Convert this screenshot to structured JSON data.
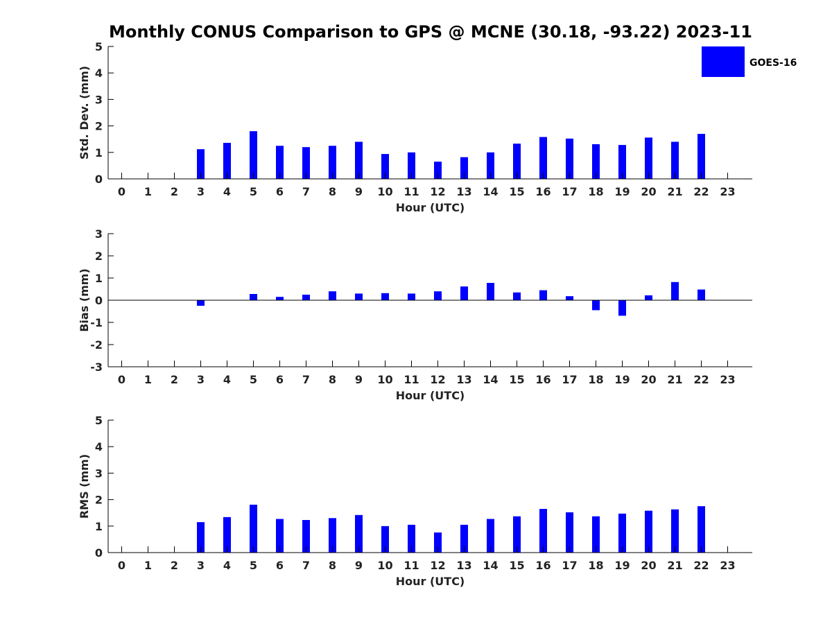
{
  "title": "Monthly CONUS Comparison to GPS @ MCNE (30.18, -93.22) 2023-11",
  "legend": {
    "label": "GOES-16",
    "placement": "top-right"
  },
  "colors": {
    "bar": "#0000ff",
    "axis": "#000000",
    "text": "#222222"
  },
  "chart_data": [
    {
      "type": "bar",
      "xlabel": "Hour (UTC)",
      "ylabel": "Std. Dev. (mm)",
      "ylim": [
        0,
        5
      ],
      "yticks": [
        0,
        1,
        2,
        3,
        4,
        5
      ],
      "categories": [
        "0",
        "1",
        "2",
        "3",
        "4",
        "5",
        "6",
        "7",
        "8",
        "9",
        "10",
        "11",
        "12",
        "13",
        "14",
        "15",
        "16",
        "17",
        "18",
        "19",
        "20",
        "21",
        "22",
        "23"
      ],
      "series": [
        {
          "name": "GOES-16",
          "values": [
            null,
            null,
            null,
            1.12,
            1.36,
            1.8,
            1.25,
            1.2,
            1.25,
            1.4,
            0.94,
            1.0,
            0.65,
            0.82,
            1.0,
            1.33,
            1.58,
            1.52,
            1.31,
            1.28,
            1.56,
            1.4,
            1.7,
            null
          ]
        }
      ],
      "grid": false
    },
    {
      "type": "bar",
      "xlabel": "Hour (UTC)",
      "ylabel": "Bias (mm)",
      "ylim": [
        -3,
        3
      ],
      "yticks": [
        -3,
        -2,
        -1,
        0,
        1,
        2,
        3
      ],
      "categories": [
        "0",
        "1",
        "2",
        "3",
        "4",
        "5",
        "6",
        "7",
        "8",
        "9",
        "10",
        "11",
        "12",
        "13",
        "14",
        "15",
        "16",
        "17",
        "18",
        "19",
        "20",
        "21",
        "22",
        "23"
      ],
      "series": [
        {
          "name": "GOES-16",
          "values": [
            null,
            null,
            null,
            -0.25,
            null,
            0.28,
            0.15,
            0.25,
            0.4,
            0.3,
            0.32,
            0.3,
            0.4,
            0.62,
            0.78,
            0.35,
            0.45,
            0.18,
            -0.45,
            -0.7,
            0.22,
            0.82,
            0.48,
            null
          ]
        }
      ],
      "grid": false
    },
    {
      "type": "bar",
      "xlabel": "Hour (UTC)",
      "ylabel": "RMS (mm)",
      "ylim": [
        0,
        5
      ],
      "yticks": [
        0,
        1,
        2,
        3,
        4,
        5
      ],
      "categories": [
        "0",
        "1",
        "2",
        "3",
        "4",
        "5",
        "6",
        "7",
        "8",
        "9",
        "10",
        "11",
        "12",
        "13",
        "14",
        "15",
        "16",
        "17",
        "18",
        "19",
        "20",
        "21",
        "22",
        "23"
      ],
      "series": [
        {
          "name": "GOES-16",
          "values": [
            null,
            null,
            null,
            1.15,
            1.34,
            1.81,
            1.27,
            1.23,
            1.3,
            1.42,
            1.0,
            1.05,
            0.76,
            1.05,
            1.27,
            1.37,
            1.65,
            1.52,
            1.37,
            1.47,
            1.58,
            1.63,
            1.75,
            null
          ]
        }
      ],
      "grid": false
    }
  ]
}
